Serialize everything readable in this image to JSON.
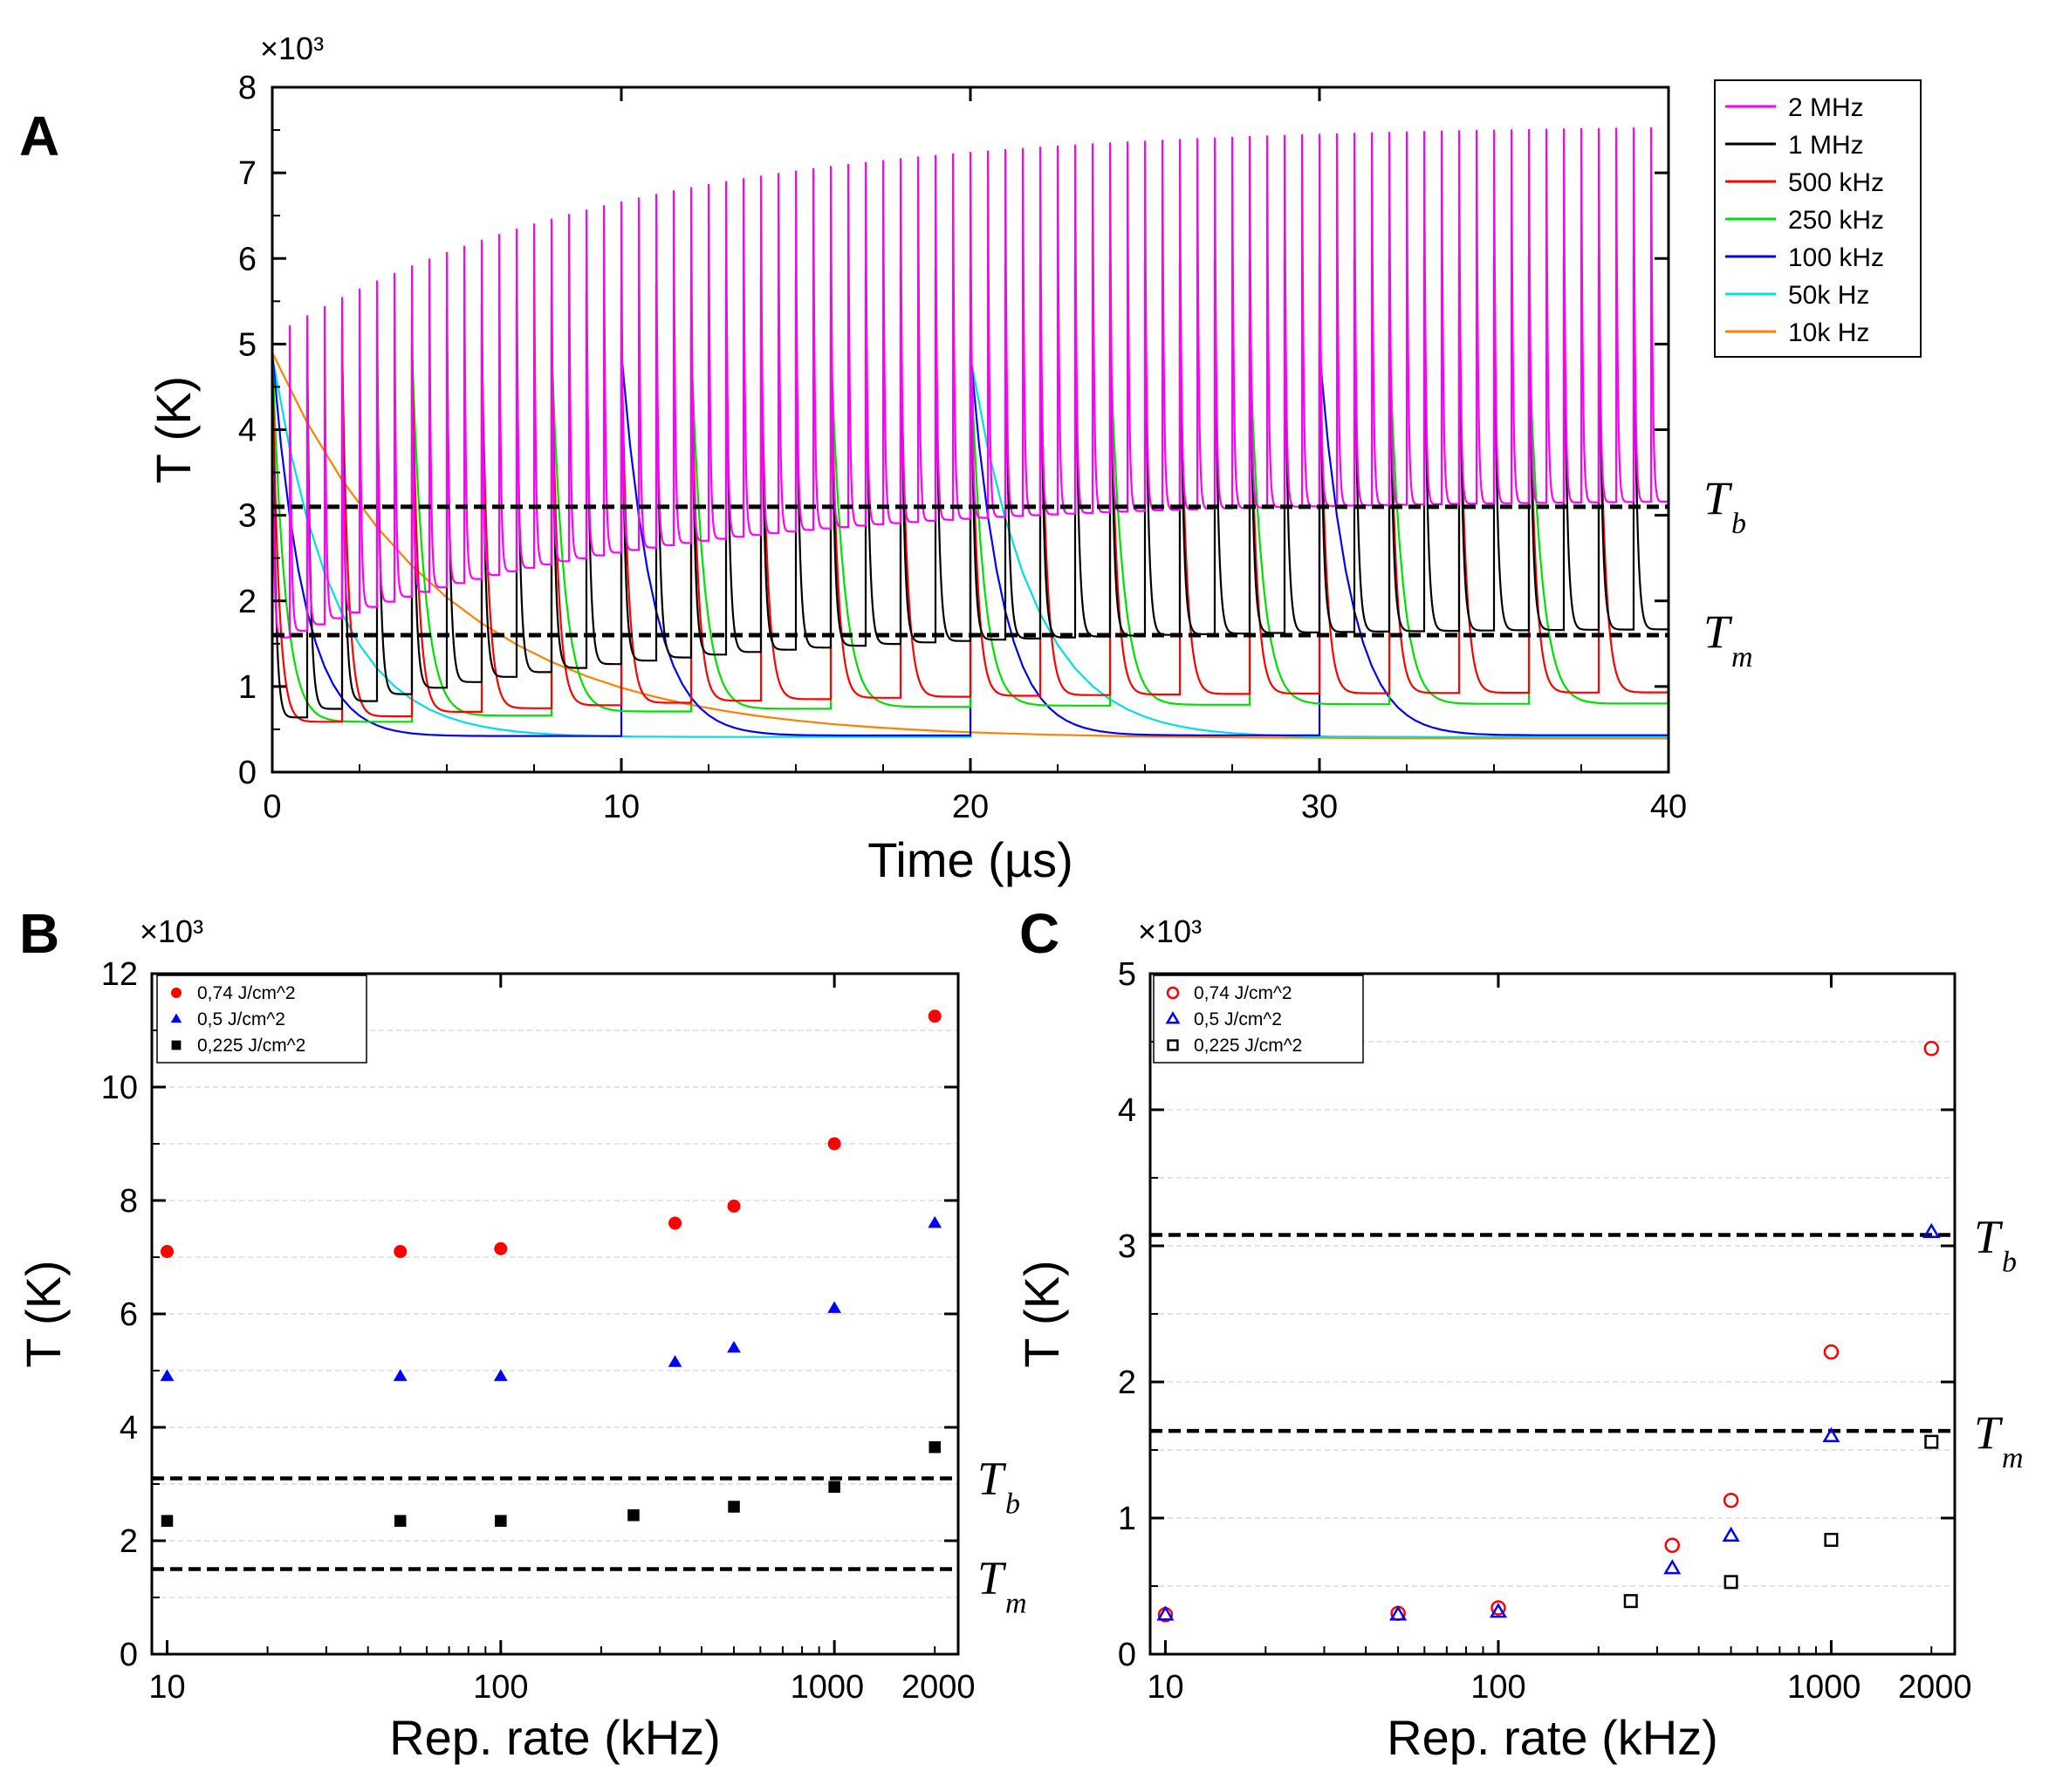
{
  "figure": {
    "panels": [
      "A",
      "B",
      "C"
    ]
  },
  "chart_data": [
    {
      "panel": "A",
      "type": "line",
      "title": "",
      "xlabel": "Time (µs)",
      "ylabel": "T (K)",
      "y_multiplier": "×10³",
      "xlim": [
        0,
        40
      ],
      "ylim": [
        0,
        8
      ],
      "xticks": [
        0,
        10,
        20,
        30,
        40
      ],
      "yticks": [
        0,
        1,
        2,
        3,
        4,
        5,
        6,
        7,
        8
      ],
      "y_units": "thousands of K",
      "legend_position": "outside-right",
      "series": [
        {
          "name": "2 MHz",
          "color": "#ff00ff",
          "period_us": 0.5,
          "first_peak": 5.1,
          "first_floor": 1.5,
          "final_peak": 7.58,
          "final_floor": 3.1
        },
        {
          "name": "1 MHz",
          "color": "#000000",
          "period_us": 1.0,
          "first_peak": 5.0,
          "first_floor": 0.55,
          "final_peak": 6.05,
          "final_floor": 1.6
        },
        {
          "name": "500 kHz",
          "color": "#ff0000",
          "period_us": 2.0,
          "first_peak": 4.9,
          "first_floor": 0.5,
          "final_peak": 5.3,
          "final_floor": 0.85
        },
        {
          "name": "250 kHz",
          "color": "#00e000",
          "period_us": 4.0,
          "first_peak": 4.9,
          "first_floor": 0.5,
          "final_peak": 5.05,
          "final_floor": 0.72
        },
        {
          "name": "100 kHz",
          "color": "#0000ff",
          "period_us": 10.0,
          "first_peak": 4.9,
          "first_floor": 0.33,
          "final_peak": 4.9,
          "final_floor": 0.34
        },
        {
          "name": "50k Hz",
          "color": "#00e0e0",
          "period_us": 20.0,
          "first_peak": 4.85,
          "first_floor": 0.32,
          "final_peak": 4.85,
          "final_floor": 0.32
        },
        {
          "name": "10k Hz",
          "color": "#ff8000",
          "period_us": 100.0,
          "first_peak": 4.9,
          "first_floor": 0.3,
          "final_peak": 4.9,
          "final_floor": 0.3
        }
      ],
      "reference_lines": [
        {
          "label": "T",
          "subscript": "b",
          "value": 3.1
        },
        {
          "label": "T",
          "subscript": "m",
          "value": 1.6
        }
      ]
    },
    {
      "panel": "B",
      "type": "scatter",
      "xscale": "log",
      "xlabel": "Rep. rate (kHz)",
      "ylabel": "T (K)",
      "y_multiplier": "×10³",
      "xlim": [
        9,
        2350
      ],
      "ylim": [
        0,
        12
      ],
      "xticks": [
        10,
        100,
        1000,
        2000
      ],
      "xtick_labels": [
        "10",
        "100",
        "1000",
        "2000"
      ],
      "yticks": [
        0,
        2,
        4,
        6,
        8,
        10,
        12
      ],
      "legend_position": "top-left",
      "series": [
        {
          "name": "0,74 J/cm^2",
          "marker": "circle",
          "filled": true,
          "color": "#ff0000",
          "x": [
            10,
            50,
            100,
            333,
            500,
            1000,
            2000
          ],
          "y": [
            7.1,
            7.1,
            7.15,
            7.6,
            7.9,
            9.0,
            11.25
          ]
        },
        {
          "name": "0,5 J/cm^2",
          "marker": "triangle",
          "filled": true,
          "color": "#0000ff",
          "x": [
            10,
            50,
            100,
            333,
            500,
            1000,
            2000
          ],
          "y": [
            4.9,
            4.9,
            4.9,
            5.15,
            5.4,
            6.1,
            7.6
          ]
        },
        {
          "name": "0,225 J/cm^2",
          "marker": "square",
          "filled": true,
          "color": "#000000",
          "x": [
            10,
            50,
            100,
            250,
            500,
            1000,
            2000
          ],
          "y": [
            2.35,
            2.35,
            2.35,
            2.45,
            2.6,
            2.95,
            3.65
          ]
        }
      ],
      "reference_lines": [
        {
          "label": "T",
          "subscript": "b",
          "value": 3.1
        },
        {
          "label": "T",
          "subscript": "m",
          "value": 1.5
        }
      ]
    },
    {
      "panel": "C",
      "type": "scatter",
      "xscale": "log",
      "xlabel": "Rep. rate (kHz)",
      "ylabel": "T (K)",
      "y_multiplier": "×10³",
      "xlim": [
        9,
        2350
      ],
      "ylim": [
        0,
        5
      ],
      "xticks": [
        10,
        100,
        1000,
        2000
      ],
      "xtick_labels": [
        "10",
        "100",
        "1000",
        "2000"
      ],
      "yticks": [
        0,
        1,
        2,
        3,
        4,
        5
      ],
      "legend_position": "top-left",
      "series": [
        {
          "name": "0,74 J/cm^2",
          "marker": "circle",
          "filled": false,
          "color": "#ff0000",
          "x": [
            10,
            50,
            100,
            333,
            500,
            1000,
            2000
          ],
          "y": [
            0.29,
            0.3,
            0.34,
            0.8,
            1.13,
            2.22,
            4.45
          ]
        },
        {
          "name": "0,5 J/cm^2",
          "marker": "triangle",
          "filled": false,
          "color": "#0000ff",
          "x": [
            10,
            50,
            100,
            333,
            500,
            1000,
            2000
          ],
          "y": [
            0.29,
            0.29,
            0.31,
            0.63,
            0.87,
            1.6,
            3.1
          ]
        },
        {
          "name": "0,225 J/cm^2",
          "marker": "square",
          "filled": false,
          "color": "#000000",
          "x": [
            250,
            500,
            1000,
            2000
          ],
          "y": [
            0.39,
            0.53,
            0.84,
            1.56
          ]
        }
      ],
      "reference_lines": [
        {
          "label": "T",
          "subscript": "b",
          "value": 3.08
        },
        {
          "label": "T",
          "subscript": "m",
          "value": 1.64
        }
      ]
    }
  ]
}
